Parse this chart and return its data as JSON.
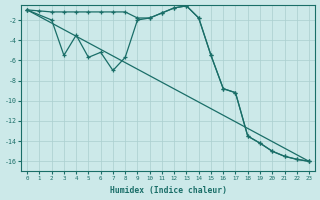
{
  "xlabel": "Humidex (Indice chaleur)",
  "bg_color": "#cce9e9",
  "line_color": "#1a6e68",
  "grid_color": "#aacfcf",
  "xlim": [
    -0.5,
    23.5
  ],
  "ylim": [
    -17,
    -0.5
  ],
  "yticks": [
    -2,
    -4,
    -6,
    -8,
    -10,
    -12,
    -14,
    -16
  ],
  "xticks": [
    0,
    1,
    2,
    3,
    4,
    5,
    6,
    7,
    8,
    9,
    10,
    11,
    12,
    13,
    14,
    15,
    16,
    17,
    18,
    19,
    20,
    21,
    22,
    23
  ],
  "line1_x": [
    0,
    1,
    2,
    3,
    4,
    5,
    6,
    7,
    8,
    9,
    10,
    11,
    12,
    13,
    14,
    15,
    16,
    17,
    18,
    19,
    20,
    21,
    22,
    23
  ],
  "line1_y": [
    -1.0,
    -1.1,
    -1.2,
    -1.2,
    -1.2,
    -1.2,
    -1.2,
    -1.2,
    -1.2,
    -1.8,
    -1.8,
    -1.3,
    -0.8,
    -0.6,
    -1.8,
    -5.5,
    -8.8,
    -9.2,
    -13.5,
    -14.2,
    -15.0,
    -15.5,
    -15.8,
    -16.0
  ],
  "line2_x": [
    0,
    2,
    3,
    4,
    5,
    6,
    7,
    8,
    9,
    10,
    11,
    12,
    13,
    14,
    15,
    16,
    17,
    18,
    19,
    20,
    21,
    22,
    23
  ],
  "line2_y": [
    -1.0,
    -2.0,
    -5.5,
    -3.5,
    -5.7,
    -5.2,
    -7.0,
    -5.7,
    -2.0,
    -1.8,
    -1.3,
    -0.8,
    -0.6,
    -1.8,
    -5.5,
    -8.8,
    -9.2,
    -13.5,
    -14.2,
    -15.0,
    -15.5,
    -15.8,
    -16.0
  ],
  "line3_x": [
    0,
    23
  ],
  "line3_y": [
    -1.0,
    -16.0
  ]
}
